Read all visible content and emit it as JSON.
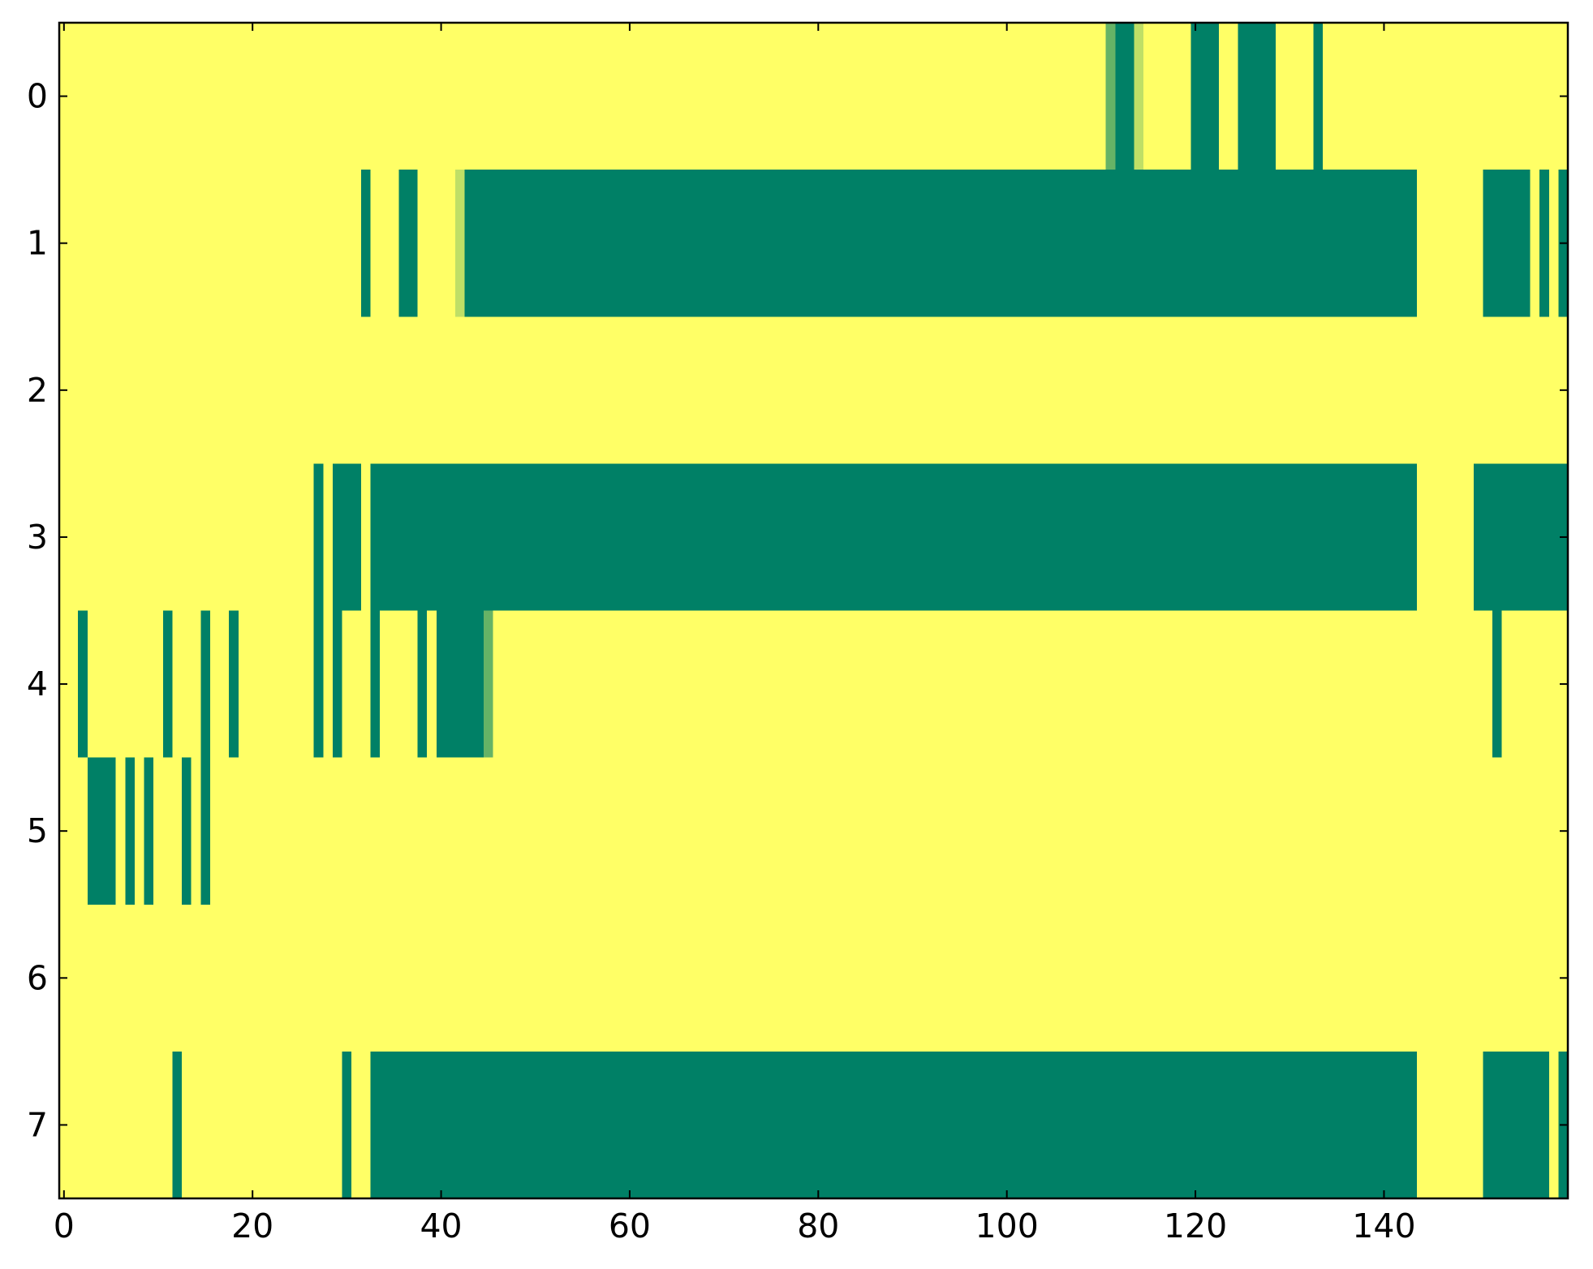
{
  "chart_data": {
    "type": "heatmap",
    "colormap": "summer",
    "xlim": [
      -0.5,
      159.5
    ],
    "ylim": [
      7.5,
      -0.5
    ],
    "xticks": [
      0,
      20,
      40,
      60,
      80,
      100,
      120,
      140
    ],
    "yticks": [
      0,
      1,
      2,
      3,
      4,
      5,
      6,
      7
    ],
    "z": [
      [
        1,
        1,
        1,
        1,
        1,
        1,
        1,
        1,
        1,
        1,
        1,
        1,
        1,
        1,
        1,
        1,
        1,
        1,
        1,
        1,
        1,
        1,
        1,
        1,
        1,
        1,
        1,
        1,
        1,
        1,
        1,
        1,
        1,
        1,
        1,
        1,
        1,
        1,
        1,
        1,
        1,
        1,
        1,
        1,
        1,
        1,
        1,
        1,
        1,
        1,
        1,
        1,
        1,
        1,
        1,
        1,
        1,
        1,
        1,
        1,
        1,
        1,
        1,
        1,
        1,
        1,
        1,
        1,
        1,
        1,
        1,
        1,
        1,
        1,
        1,
        1,
        1,
        1,
        1,
        1,
        1,
        1,
        1,
        1,
        1,
        1,
        1,
        1,
        1,
        1,
        1,
        1,
        1,
        1,
        1,
        1,
        1,
        1,
        1,
        1,
        1,
        1,
        1,
        1,
        1,
        1,
        1,
        1,
        1,
        1,
        1,
        0.4,
        0,
        0,
        0.75,
        1,
        1,
        1,
        1,
        1,
        0,
        0,
        0,
        1,
        1,
        0,
        0,
        0,
        0,
        1,
        1,
        1,
        1,
        0,
        1,
        1,
        1,
        1,
        1,
        1,
        1,
        1,
        1,
        1,
        1,
        1,
        1,
        1,
        1,
        1,
        1,
        1,
        1,
        1,
        1,
        1,
        1,
        1,
        1,
        1
      ],
      [
        1,
        1,
        1,
        1,
        1,
        1,
        1,
        1,
        1,
        1,
        1,
        1,
        1,
        1,
        1,
        1,
        1,
        1,
        1,
        1,
        1,
        1,
        1,
        1,
        1,
        1,
        1,
        1,
        1,
        1,
        1,
        1,
        0,
        1,
        1,
        1,
        0,
        0,
        1,
        1,
        1,
        1,
        0.75,
        0,
        0,
        0,
        0,
        0,
        0,
        0,
        0,
        0,
        0,
        0,
        0,
        0,
        0,
        0,
        0,
        0,
        0,
        0,
        0,
        0,
        0,
        0,
        0,
        0,
        0,
        0,
        0,
        0,
        0,
        0,
        0,
        0,
        0,
        0,
        0,
        0,
        0,
        0,
        0,
        0,
        0,
        0,
        0,
        0,
        0,
        0,
        0,
        0,
        0,
        0,
        0,
        0,
        0,
        0,
        0,
        0,
        0,
        0,
        0,
        0,
        0,
        0,
        0,
        0,
        0,
        0,
        0,
        0,
        0,
        0,
        0,
        0,
        0,
        0,
        0,
        0,
        0,
        0,
        0,
        0,
        0,
        0,
        0,
        0,
        0,
        0,
        0,
        0,
        0,
        0,
        0,
        0,
        0,
        0,
        0,
        0,
        0,
        0,
        0,
        0,
        1,
        1,
        1,
        1,
        1,
        1,
        1,
        0,
        0,
        0,
        0,
        0,
        1,
        0,
        1,
        0
      ],
      [
        1,
        1,
        1,
        1,
        1,
        1,
        1,
        1,
        1,
        1,
        1,
        1,
        1,
        1,
        1,
        1,
        1,
        1,
        1,
        1,
        1,
        1,
        1,
        1,
        1,
        1,
        1,
        1,
        1,
        1,
        1,
        1,
        1,
        1,
        1,
        1,
        1,
        1,
        1,
        1,
        1,
        1,
        1,
        1,
        1,
        1,
        1,
        1,
        1,
        1,
        1,
        1,
        1,
        1,
        1,
        1,
        1,
        1,
        1,
        1,
        1,
        1,
        1,
        1,
        1,
        1,
        1,
        1,
        1,
        1,
        1,
        1,
        1,
        1,
        1,
        1,
        1,
        1,
        1,
        1,
        1,
        1,
        1,
        1,
        1,
        1,
        1,
        1,
        1,
        1,
        1,
        1,
        1,
        1,
        1,
        1,
        1,
        1,
        1,
        1,
        1,
        1,
        1,
        1,
        1,
        1,
        1,
        1,
        1,
        1,
        1,
        1,
        1,
        1,
        1,
        1,
        1,
        1,
        1,
        1,
        1,
        1,
        1,
        1,
        1,
        1,
        1,
        1,
        1,
        1,
        1,
        1,
        1,
        1,
        1,
        1,
        1,
        1,
        1,
        1,
        1,
        1,
        1,
        1,
        1,
        1,
        1,
        1,
        1,
        1,
        1,
        1,
        1,
        1,
        1,
        1,
        1,
        1,
        1,
        1
      ],
      [
        1,
        1,
        1,
        1,
        1,
        1,
        1,
        1,
        1,
        1,
        1,
        1,
        1,
        1,
        1,
        1,
        1,
        1,
        1,
        1,
        1,
        1,
        1,
        1,
        1,
        1,
        1,
        0,
        1,
        0,
        0,
        0,
        1,
        0,
        0,
        0,
        0,
        0,
        0,
        0,
        0,
        0,
        0,
        0,
        0,
        0,
        0,
        0,
        0,
        0,
        0,
        0,
        0,
        0,
        0,
        0,
        0,
        0,
        0,
        0,
        0,
        0,
        0,
        0,
        0,
        0,
        0,
        0,
        0,
        0,
        0,
        0,
        0,
        0,
        0,
        0,
        0,
        0,
        0,
        0,
        0,
        0,
        0,
        0,
        0,
        0,
        0,
        0,
        0,
        0,
        0,
        0,
        0,
        0,
        0,
        0,
        0,
        0,
        0,
        0,
        0,
        0,
        0,
        0,
        0,
        0,
        0,
        0,
        0,
        0,
        0,
        0,
        0,
        0,
        0,
        0,
        0,
        0,
        0,
        0,
        0,
        0,
        0,
        0,
        0,
        0,
        0,
        0,
        0,
        0,
        0,
        0,
        0,
        0,
        0,
        0,
        0,
        0,
        0,
        0,
        0,
        0,
        0,
        0,
        1,
        1,
        1,
        1,
        1,
        1,
        0,
        0,
        0,
        0,
        0,
        0,
        0,
        0,
        0,
        0
      ],
      [
        1,
        1,
        0,
        1,
        1,
        1,
        1,
        1,
        1,
        1,
        1,
        0,
        1,
        1,
        1,
        0,
        1,
        1,
        0,
        1,
        1,
        1,
        1,
        1,
        1,
        1,
        1,
        0,
        1,
        0,
        1,
        1,
        1,
        0,
        1,
        1,
        1,
        1,
        0,
        1,
        0,
        0,
        0,
        0,
        0,
        0.4,
        1,
        1,
        1,
        1,
        1,
        1,
        1,
        1,
        1,
        1,
        1,
        1,
        1,
        1,
        1,
        1,
        1,
        1,
        1,
        1,
        1,
        1,
        1,
        1,
        1,
        1,
        1,
        1,
        1,
        1,
        1,
        1,
        1,
        1,
        1,
        1,
        1,
        1,
        1,
        1,
        1,
        1,
        1,
        1,
        1,
        1,
        1,
        1,
        1,
        1,
        1,
        1,
        1,
        1,
        1,
        1,
        1,
        1,
        1,
        1,
        1,
        1,
        1,
        1,
        1,
        1,
        1,
        1,
        1,
        1,
        1,
        1,
        1,
        1,
        1,
        1,
        1,
        1,
        1,
        1,
        1,
        1,
        1,
        1,
        1,
        1,
        1,
        1,
        1,
        1,
        1,
        1,
        1,
        1,
        1,
        1,
        1,
        1,
        1,
        1,
        1,
        1,
        1,
        1,
        1,
        1,
        0,
        1,
        1,
        1,
        1,
        1,
        1,
        1
      ],
      [
        1,
        1,
        1,
        0,
        0,
        0,
        1,
        0,
        1,
        0,
        1,
        1,
        1,
        0,
        1,
        0,
        1,
        1,
        1,
        1,
        1,
        1,
        1,
        1,
        1,
        1,
        1,
        1,
        1,
        1,
        1,
        1,
        1,
        1,
        1,
        1,
        1,
        1,
        1,
        1,
        1,
        1,
        1,
        1,
        1,
        1,
        1,
        1,
        1,
        1,
        1,
        1,
        1,
        1,
        1,
        1,
        1,
        1,
        1,
        1,
        1,
        1,
        1,
        1,
        1,
        1,
        1,
        1,
        1,
        1,
        1,
        1,
        1,
        1,
        1,
        1,
        1,
        1,
        1,
        1,
        1,
        1,
        1,
        1,
        1,
        1,
        1,
        1,
        1,
        1,
        1,
        1,
        1,
        1,
        1,
        1,
        1,
        1,
        1,
        1,
        1,
        1,
        1,
        1,
        1,
        1,
        1,
        1,
        1,
        1,
        1,
        1,
        1,
        1,
        1,
        1,
        1,
        1,
        1,
        1,
        1,
        1,
        1,
        1,
        1,
        1,
        1,
        1,
        1,
        1,
        1,
        1,
        1,
        1,
        1,
        1,
        1,
        1,
        1,
        1,
        1,
        1,
        1,
        1,
        1,
        1,
        1,
        1,
        1,
        1,
        1,
        1,
        1,
        1,
        1,
        1,
        1,
        1,
        1,
        1
      ],
      [
        1,
        1,
        1,
        1,
        1,
        1,
        1,
        1,
        1,
        1,
        1,
        1,
        1,
        1,
        1,
        1,
        1,
        1,
        1,
        1,
        1,
        1,
        1,
        1,
        1,
        1,
        1,
        1,
        1,
        1,
        1,
        1,
        1,
        1,
        1,
        1,
        1,
        1,
        1,
        1,
        1,
        1,
        1,
        1,
        1,
        1,
        1,
        1,
        1,
        1,
        1,
        1,
        1,
        1,
        1,
        1,
        1,
        1,
        1,
        1,
        1,
        1,
        1,
        1,
        1,
        1,
        1,
        1,
        1,
        1,
        1,
        1,
        1,
        1,
        1,
        1,
        1,
        1,
        1,
        1,
        1,
        1,
        1,
        1,
        1,
        1,
        1,
        1,
        1,
        1,
        1,
        1,
        1,
        1,
        1,
        1,
        1,
        1,
        1,
        1,
        1,
        1,
        1,
        1,
        1,
        1,
        1,
        1,
        1,
        1,
        1,
        1,
        1,
        1,
        1,
        1,
        1,
        1,
        1,
        1,
        1,
        1,
        1,
        1,
        1,
        1,
        1,
        1,
        1,
        1,
        1,
        1,
        1,
        1,
        1,
        1,
        1,
        1,
        1,
        1,
        1,
        1,
        1,
        1,
        1,
        1,
        1,
        1,
        1,
        1,
        1,
        1,
        1,
        1,
        1,
        1,
        1,
        1,
        1,
        1
      ],
      [
        1,
        1,
        1,
        1,
        1,
        1,
        1,
        1,
        1,
        1,
        1,
        1,
        0,
        1,
        1,
        1,
        1,
        1,
        1,
        1,
        1,
        1,
        1,
        1,
        1,
        1,
        1,
        1,
        1,
        1,
        0,
        1,
        1,
        0,
        0,
        0,
        0,
        0,
        0,
        0,
        0,
        0,
        0,
        0,
        0,
        0,
        0,
        0,
        0,
        0,
        0,
        0,
        0,
        0,
        0,
        0,
        0,
        0,
        0,
        0,
        0,
        0,
        0,
        0,
        0,
        0,
        0,
        0,
        0,
        0,
        0,
        0,
        0,
        0,
        0,
        0,
        0,
        0,
        0,
        0,
        0,
        0,
        0,
        0,
        0,
        0,
        0,
        0,
        0,
        0,
        0,
        0,
        0,
        0,
        0,
        0,
        0,
        0,
        0,
        0,
        0,
        0,
        0,
        0,
        0,
        0,
        0,
        0,
        0,
        0,
        0,
        0,
        0,
        0,
        0,
        0,
        0,
        0,
        0,
        0,
        0,
        0,
        0,
        0,
        0,
        0,
        0,
        0,
        0,
        0,
        0,
        0,
        0,
        0,
        0,
        0,
        0,
        0,
        0,
        0,
        0,
        0,
        0,
        0,
        1,
        1,
        1,
        1,
        1,
        1,
        1,
        0,
        0,
        0,
        0,
        0,
        0,
        0,
        1,
        0
      ]
    ]
  }
}
